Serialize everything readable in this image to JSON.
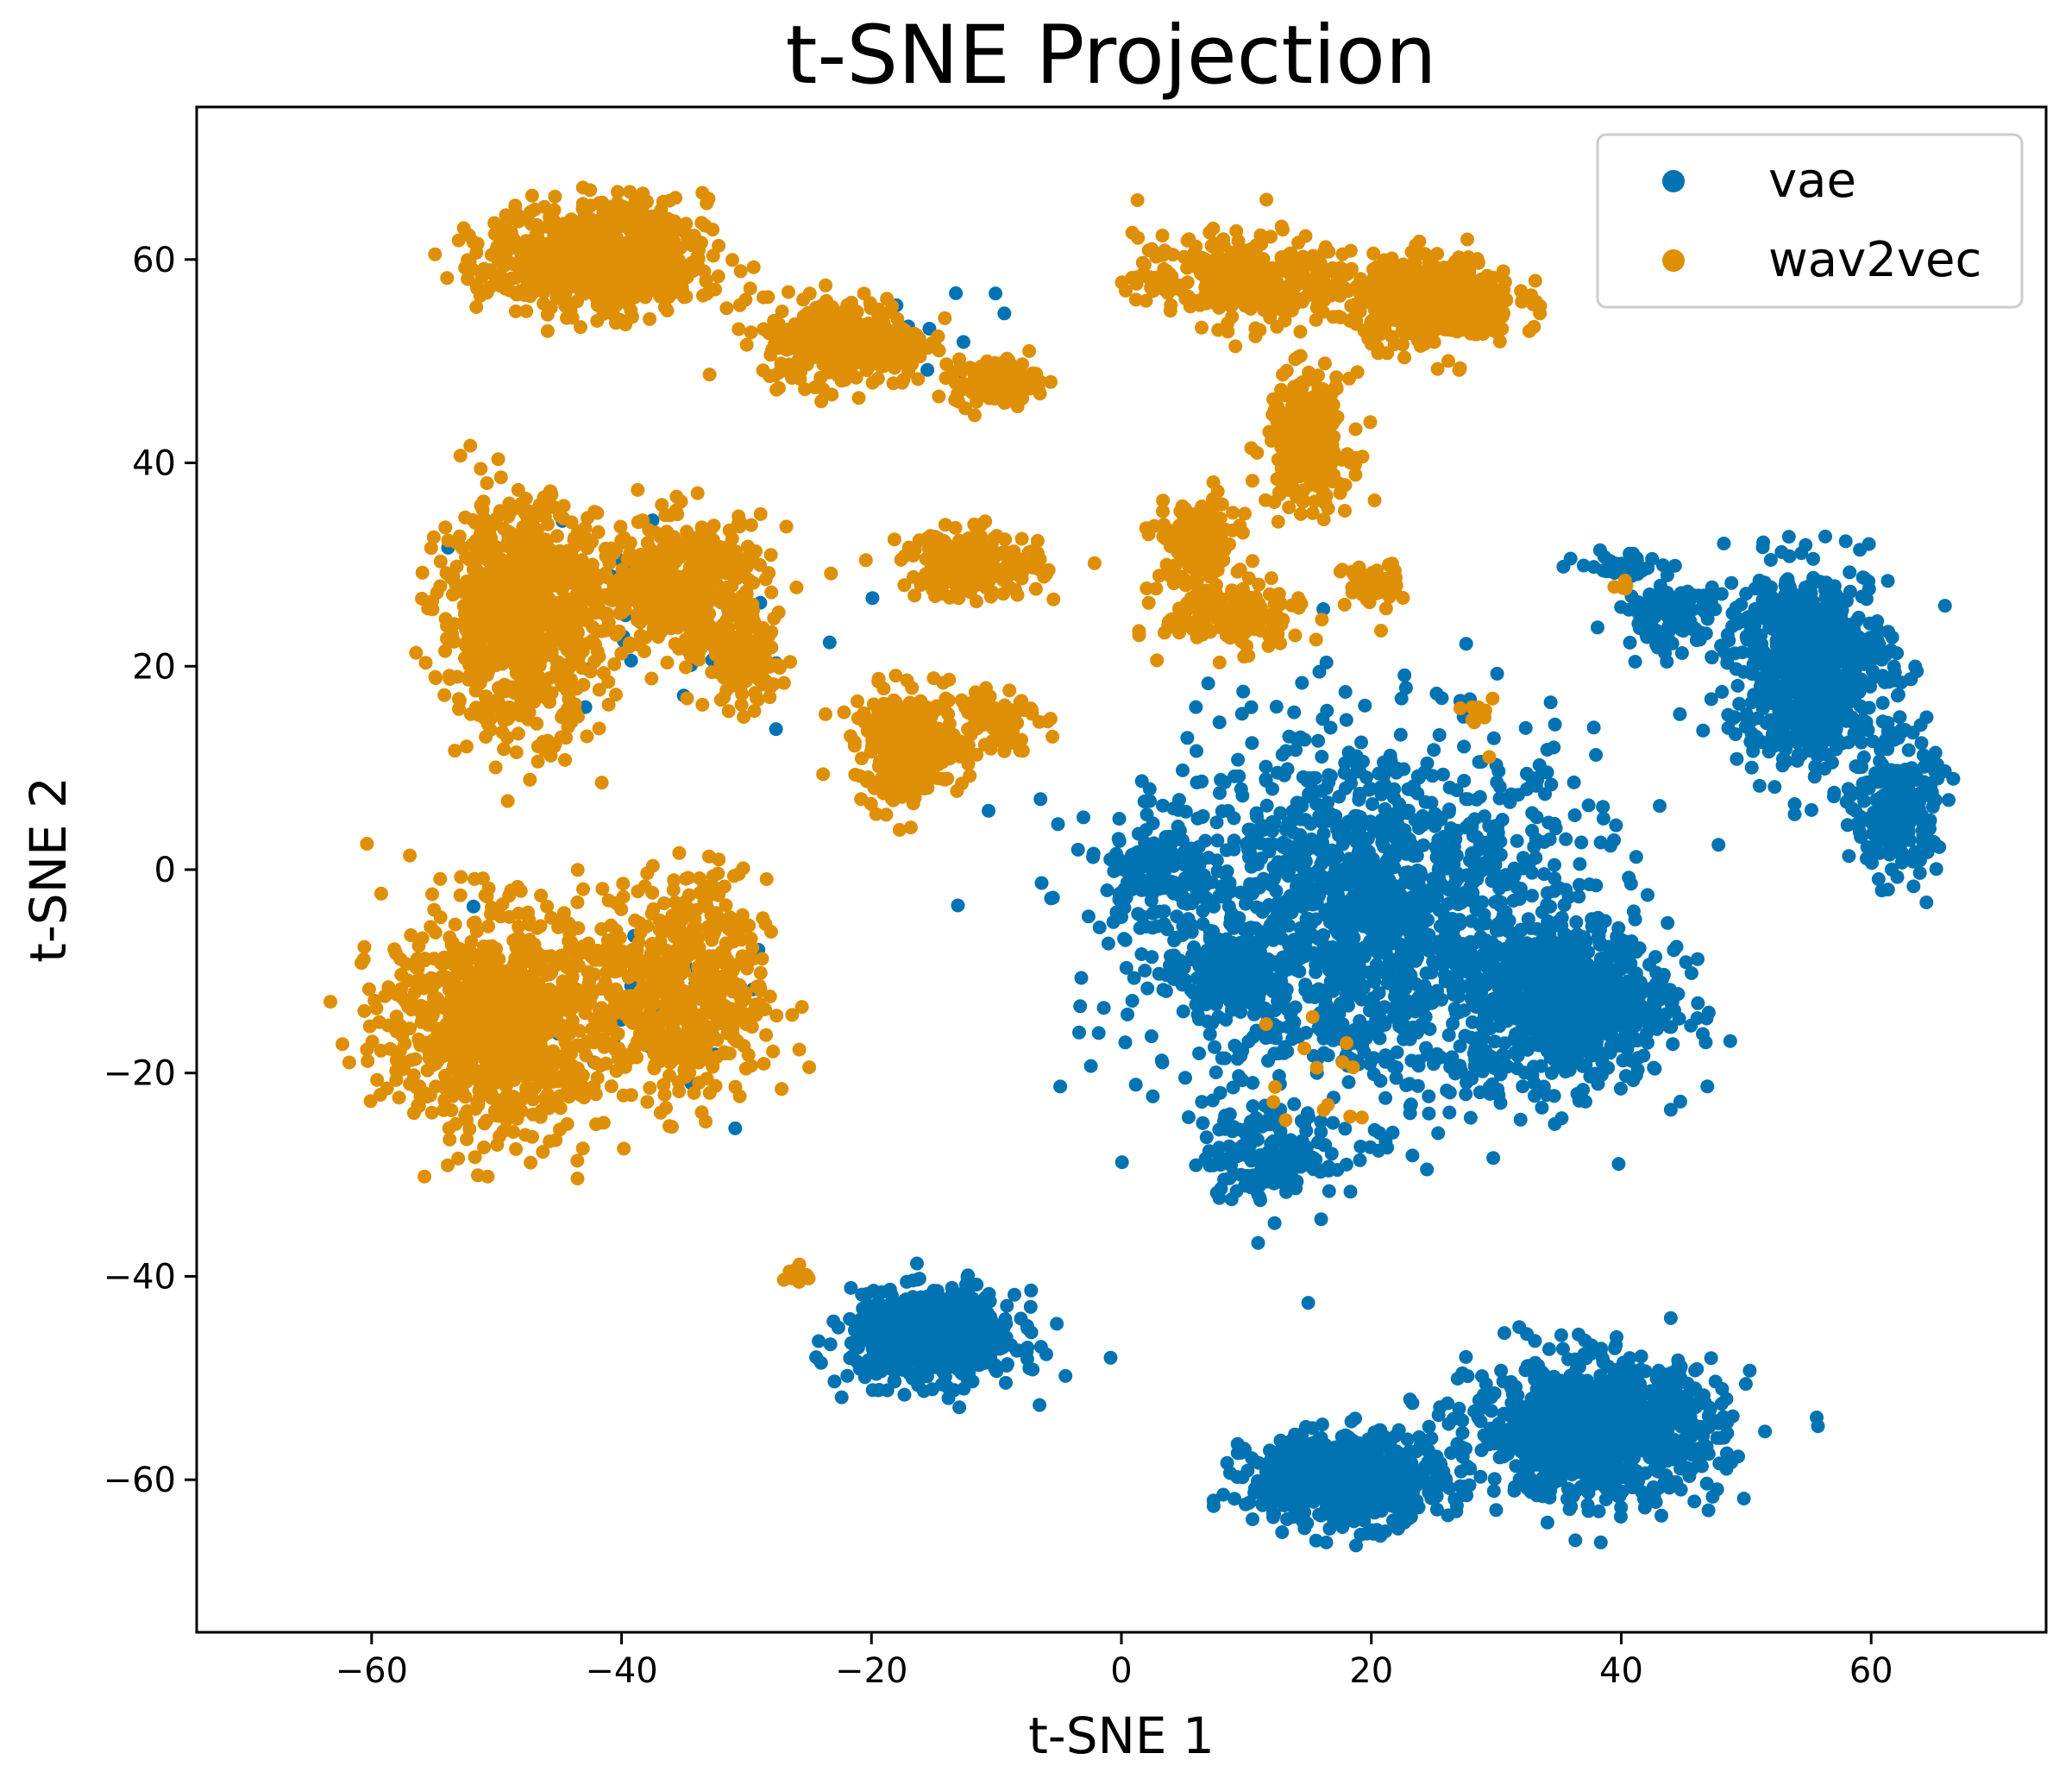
{
  "chart_data": {
    "type": "scatter",
    "title": "t-SNE Projection",
    "xlabel": "t-SNE 1",
    "ylabel": "t-SNE 2",
    "xlim": [
      -74,
      74
    ],
    "ylim": [
      -75,
      75
    ],
    "xticks": [
      -60,
      -40,
      -20,
      0,
      20,
      40,
      60
    ],
    "yticks": [
      -60,
      -40,
      -20,
      0,
      20,
      40,
      60
    ],
    "xtick_labels": [
      "−60",
      "−40",
      "−20",
      "0",
      "20",
      "40",
      "60"
    ],
    "ytick_labels": [
      "−60",
      "−40",
      "−20",
      "0",
      "20",
      "40",
      "60"
    ],
    "grid": false,
    "legend_position": "top-right",
    "series": [
      {
        "name": "vae",
        "color": "#0173b2",
        "clusters": [
          {
            "center": [
              20,
              -5
            ],
            "spread": [
              16,
              17
            ],
            "count": 1500
          },
          {
            "center": [
              36,
              -13
            ],
            "spread": [
              7,
              7
            ],
            "count": 700
          },
          {
            "center": [
              8,
              -10
            ],
            "spread": [
              4,
              4
            ],
            "count": 160
          },
          {
            "center": [
              12,
              -28
            ],
            "spread": [
              5,
              4
            ],
            "count": 160
          },
          {
            "center": [
              3,
              0
            ],
            "spread": [
              4,
              4
            ],
            "count": 150
          },
          {
            "center": [
              -15,
              -46
            ],
            "spread": [
              6,
              4
            ],
            "count": 650
          },
          {
            "center": [
              18,
              -60
            ],
            "spread": [
              7,
              4
            ],
            "count": 650
          },
          {
            "center": [
              38,
              -55
            ],
            "spread": [
              9,
              6
            ],
            "count": 1000
          },
          {
            "center": [
              55,
              20
            ],
            "spread": [
              6,
              9
            ],
            "count": 650
          },
          {
            "center": [
              62,
              6
            ],
            "spread": [
              3,
              6
            ],
            "count": 250
          },
          {
            "center": [
              44,
              25
            ],
            "spread": [
              4,
              3
            ],
            "count": 120
          },
          {
            "center": [
              40,
              30
            ],
            "spread": [
              3,
              1
            ],
            "count": 40
          },
          {
            "center": [
              -38,
              25
            ],
            "spread": [
              12,
              9
            ],
            "count": 35
          },
          {
            "center": [
              -38,
              -15
            ],
            "spread": [
              12,
              9
            ],
            "count": 30
          },
          {
            "center": [
              -15,
              52
            ],
            "spread": [
              8,
              5
            ],
            "count": 12
          }
        ]
      },
      {
        "name": "wav2vec",
        "color": "#de8f05",
        "clusters": [
          {
            "center": [
              -42,
              60
            ],
            "spread": [
              8,
              5
            ],
            "count": 700
          },
          {
            "center": [
              -22,
              52
            ],
            "spread": [
              6,
              4
            ],
            "count": 350
          },
          {
            "center": [
              -10,
              48
            ],
            "spread": [
              3,
              2
            ],
            "count": 150
          },
          {
            "center": [
              10,
              58
            ],
            "spread": [
              8,
              4
            ],
            "count": 350
          },
          {
            "center": [
              25,
              56
            ],
            "spread": [
              6,
              4
            ],
            "count": 400
          },
          {
            "center": [
              15,
              42
            ],
            "spread": [
              3,
              6
            ],
            "count": 280
          },
          {
            "center": [
              6,
              32
            ],
            "spread": [
              3,
              4
            ],
            "count": 160
          },
          {
            "center": [
              9,
              25
            ],
            "spread": [
              5,
              3
            ],
            "count": 180
          },
          {
            "center": [
              20,
              28
            ],
            "spread": [
              2,
              2
            ],
            "count": 60
          },
          {
            "center": [
              -48,
              25
            ],
            "spread": [
              6,
              10
            ],
            "count": 800
          },
          {
            "center": [
              -35,
              28
            ],
            "spread": [
              6,
              6
            ],
            "count": 450
          },
          {
            "center": [
              -30,
              20
            ],
            "spread": [
              3,
              4
            ],
            "count": 120
          },
          {
            "center": [
              -12,
              30
            ],
            "spread": [
              5,
              3
            ],
            "count": 220
          },
          {
            "center": [
              -17,
              12
            ],
            "spread": [
              4,
              5
            ],
            "count": 280
          },
          {
            "center": [
              -10,
              15
            ],
            "spread": [
              3,
              3
            ],
            "count": 80
          },
          {
            "center": [
              -50,
              -15
            ],
            "spread": [
              8,
              10
            ],
            "count": 900
          },
          {
            "center": [
              -35,
              -12
            ],
            "spread": [
              6,
              10
            ],
            "count": 550
          },
          {
            "center": [
              -26,
              -40
            ],
            "spread": [
              1,
              1
            ],
            "count": 14
          },
          {
            "center": [
              30,
              15
            ],
            "spread": [
              2,
              3
            ],
            "count": 10
          },
          {
            "center": [
              15,
              -20
            ],
            "spread": [
              6,
              8
            ],
            "count": 14
          },
          {
            "center": [
              40,
              28
            ],
            "spread": [
              1,
              1
            ],
            "count": 5
          }
        ]
      }
    ]
  }
}
